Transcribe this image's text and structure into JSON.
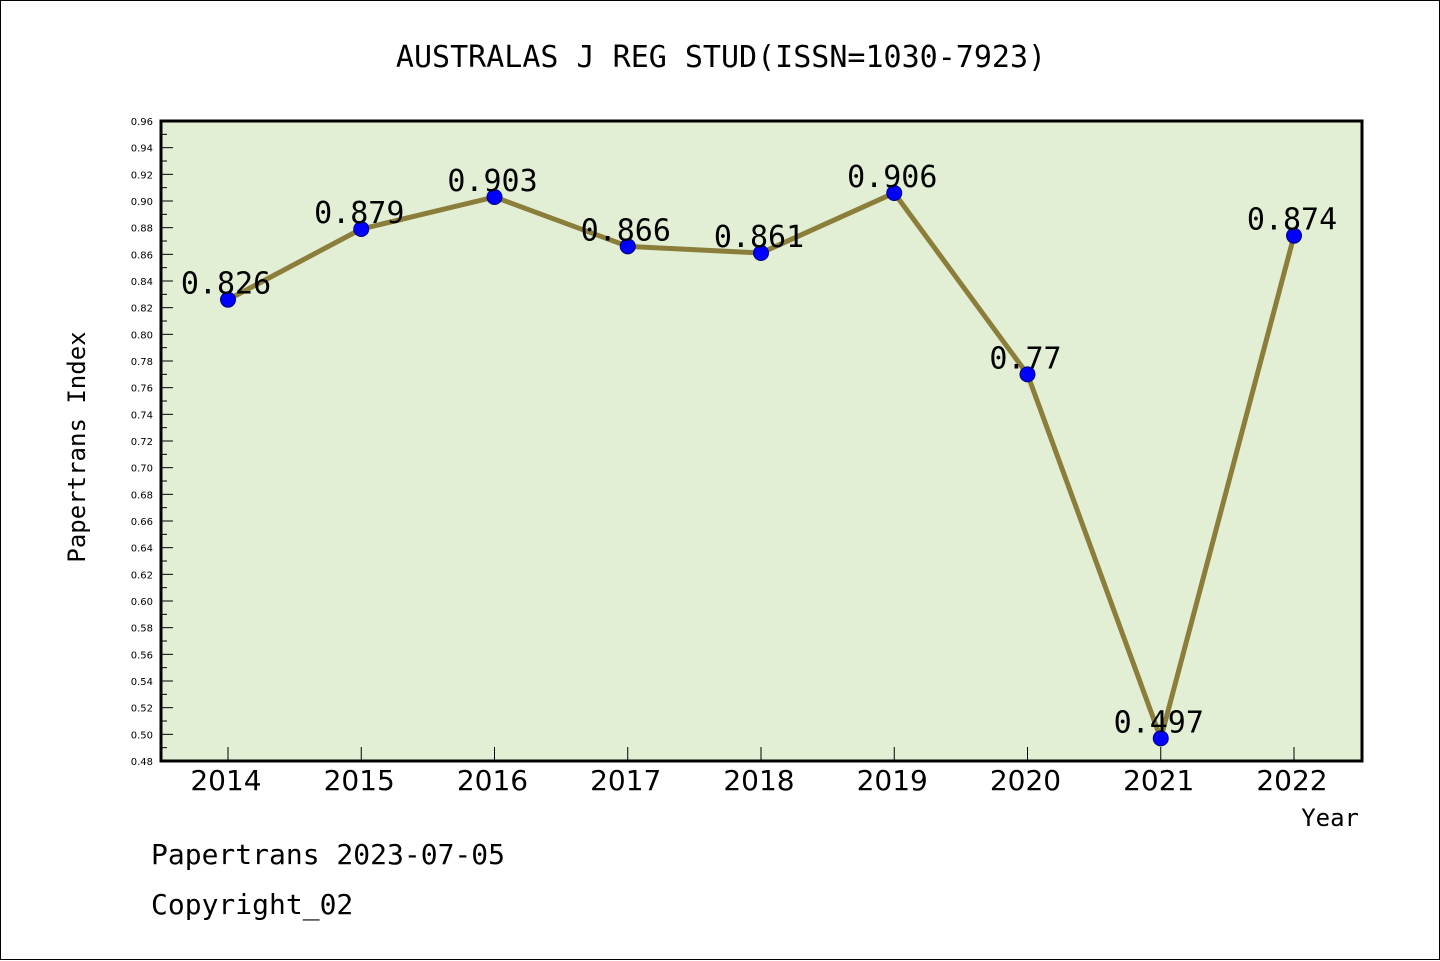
{
  "chart_data": {
    "type": "line",
    "title": "AUSTRALAS J REG STUD(ISSN=1030-7923)",
    "xlabel": "Year",
    "ylabel": "Papertrans Index",
    "categories": [
      "2014",
      "2015",
      "2016",
      "2017",
      "2018",
      "2019",
      "2020",
      "2021",
      "2022"
    ],
    "values": [
      0.826,
      0.879,
      0.903,
      0.866,
      0.861,
      0.906,
      0.77,
      0.497,
      0.874
    ],
    "data_labels": [
      "0.826",
      "0.879",
      "0.903",
      "0.866",
      "0.861",
      "0.906",
      "0.77",
      "0.497",
      "0.874"
    ],
    "ylim": [
      0.48,
      0.96
    ],
    "yticks": [
      "0.48",
      "0.50",
      "0.52",
      "0.54",
      "0.56",
      "0.58",
      "0.60",
      "0.62",
      "0.64",
      "0.66",
      "0.68",
      "0.70",
      "0.72",
      "0.74",
      "0.76",
      "0.78",
      "0.80",
      "0.82",
      "0.84",
      "0.86",
      "0.88",
      "0.90",
      "0.92",
      "0.94",
      "0.96"
    ],
    "grid": false,
    "colors": {
      "plot_background": "#e2efd5",
      "line": "#8b7d3a",
      "marker": "#0000ff"
    }
  },
  "footer": {
    "line1": "Papertrans 2023-07-05",
    "line2": "Copyright_02"
  }
}
